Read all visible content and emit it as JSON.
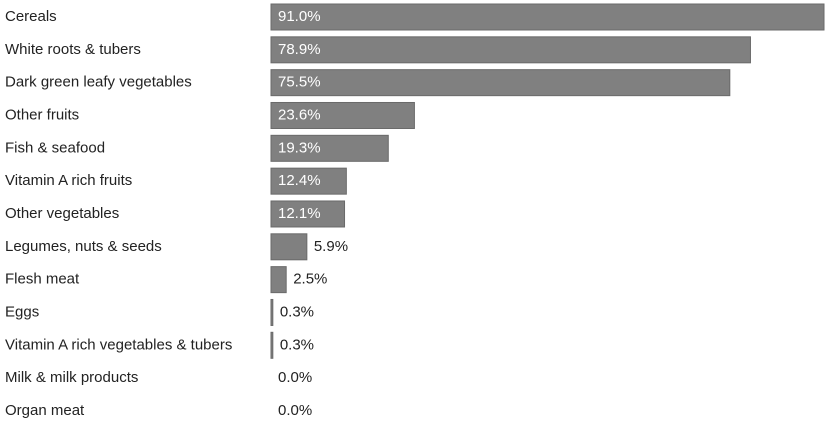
{
  "chart_data": {
    "type": "bar",
    "orientation": "horizontal",
    "categories": [
      "Cereals",
      "White roots & tubers",
      "Dark green leafy vegetables",
      "Other fruits",
      "Fish & seafood",
      "Vitamin A rich fruits",
      "Other vegetables",
      "Legumes, nuts & seeds",
      "Flesh meat",
      "Eggs",
      "Vitamin A rich vegetables & tubers",
      "Milk & milk products",
      "Organ meat"
    ],
    "values": [
      91.0,
      78.9,
      75.5,
      23.6,
      19.3,
      12.4,
      12.1,
      5.9,
      2.5,
      0.3,
      0.3,
      0.0,
      0.0
    ],
    "value_labels": [
      "91.0%",
      "78.9%",
      "75.5%",
      "23.6%",
      "19.3%",
      "12.4%",
      "12.1%",
      "5.9%",
      "2.5%",
      "0.3%",
      "0.3%",
      "0.0%",
      "0.0%"
    ],
    "color": "#808080"
  }
}
